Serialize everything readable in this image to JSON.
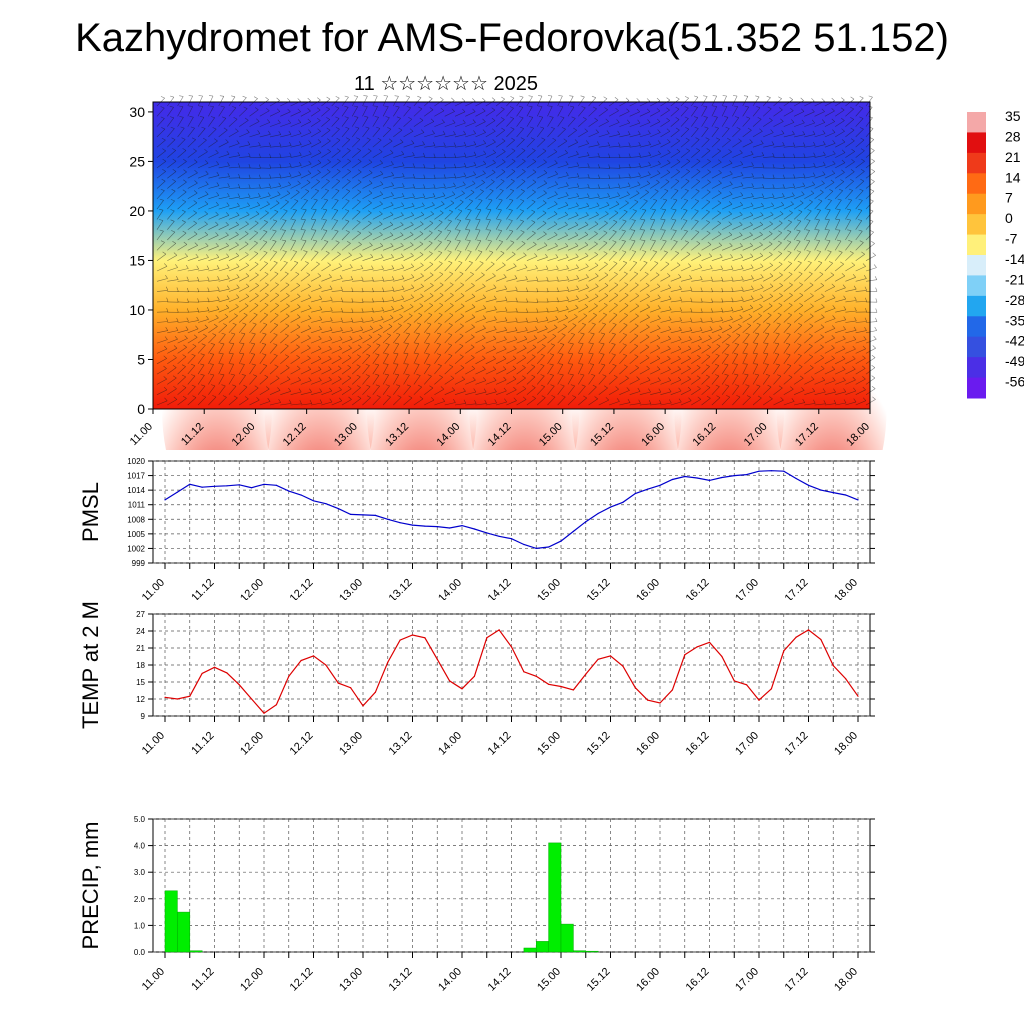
{
  "title": "Kazhydromet for AMS-Fedorovka(51.352 51.152)",
  "subtitle": "11 ☆☆☆☆☆☆ 2025",
  "colorbar": {
    "labels": [
      "35",
      "28",
      "21",
      "14",
      "7",
      "0",
      "-7",
      "-14",
      "-21",
      "-28",
      "-35",
      "-42",
      "-49",
      "-56"
    ],
    "colors": [
      "#ff0000",
      "#ff6a00",
      "#ffa200",
      "#ffd85a",
      "#9fdcff",
      "#1e90ff",
      "#2a4fe0",
      "#5a1ee6"
    ]
  },
  "chart_data": [
    {
      "type": "heatmap",
      "title": "",
      "x_tick_labels": [
        "11.00",
        "11.12",
        "12.00",
        "12.12",
        "13.00",
        "13.12",
        "14.00",
        "14.12",
        "15.00",
        "15.12",
        "16.00",
        "16.12",
        "17.00",
        "17.12",
        "18.00"
      ],
      "y_tick_labels": [
        "0",
        "5",
        "10",
        "15",
        "20",
        "25",
        "30"
      ],
      "ylim": [
        0,
        31
      ],
      "value_range": [
        -56,
        35
      ],
      "levels": [
        0,
        5,
        10,
        15,
        20,
        25,
        30
      ],
      "level_temperatures": [
        24,
        17,
        7,
        -12,
        -30,
        -47,
        -54
      ],
      "overlay": "wind barbs"
    },
    {
      "type": "line",
      "ylabel": "PMSL",
      "x_tick_labels": [
        "11.00",
        "11.12",
        "12.00",
        "12.12",
        "13.00",
        "13.12",
        "14.00",
        "14.12",
        "15.00",
        "15.12",
        "16.00",
        "16.12",
        "17.00",
        "17.12",
        "18.00"
      ],
      "y_tick_labels": [
        "999",
        "1002",
        "1005",
        "1008",
        "1011",
        "1014",
        "1017",
        "1020"
      ],
      "ylim": [
        999,
        1020
      ],
      "color": "#0000cc",
      "values": [
        1012.0,
        1013.6,
        1015.2,
        1014.6,
        1014.8,
        1014.9,
        1015.1,
        1014.5,
        1015.2,
        1015.0,
        1013.8,
        1013.0,
        1011.8,
        1011.2,
        1010.2,
        1009.0,
        1008.9,
        1008.8,
        1008.0,
        1007.3,
        1006.8,
        1006.6,
        1006.5,
        1006.2,
        1006.7,
        1006.0,
        1005.2,
        1004.5,
        1004.0,
        1002.8,
        1002.0,
        1002.3,
        1003.5,
        1005.5,
        1007.5,
        1009.2,
        1010.5,
        1011.5,
        1013.3,
        1014.2,
        1015.0,
        1016.2,
        1016.8,
        1016.5,
        1016.0,
        1016.6,
        1017.0,
        1017.2,
        1017.9,
        1018.0,
        1017.9,
        1016.4,
        1015.0,
        1014.0,
        1013.5,
        1013.0,
        1012.0
      ]
    },
    {
      "type": "line",
      "ylabel": "TEMP at 2 M",
      "x_tick_labels": [
        "11.00",
        "11.12",
        "12.00",
        "12.12",
        "13.00",
        "13.12",
        "14.00",
        "14.12",
        "15.00",
        "15.12",
        "16.00",
        "16.12",
        "17.00",
        "17.12",
        "18.00"
      ],
      "y_tick_labels": [
        "9",
        "12",
        "15",
        "18",
        "21",
        "24",
        "27"
      ],
      "ylim": [
        9,
        27
      ],
      "color": "#dd0000",
      "values": [
        12.3,
        12.0,
        12.5,
        16.5,
        17.6,
        16.6,
        14.5,
        12.0,
        9.5,
        11.0,
        16.0,
        18.8,
        19.6,
        18.0,
        14.8,
        14.0,
        10.8,
        13.2,
        18.5,
        22.4,
        23.3,
        22.8,
        19.0,
        15.2,
        13.8,
        16.0,
        22.8,
        24.2,
        21.2,
        16.8,
        16.0,
        14.6,
        14.2,
        13.6,
        16.4,
        19.0,
        19.6,
        17.8,
        14.0,
        11.8,
        11.3,
        13.6,
        19.8,
        21.2,
        22.0,
        19.5,
        15.2,
        14.5,
        11.8,
        13.8,
        20.5,
        22.9,
        24.2,
        22.5,
        17.9,
        15.6,
        12.5
      ]
    },
    {
      "type": "bar",
      "ylabel": "PRECIP, mm",
      "x_tick_labels": [
        "11.00",
        "11.12",
        "12.00",
        "12.12",
        "13.00",
        "13.12",
        "14.00",
        "14.12",
        "15.00",
        "15.12",
        "16.00",
        "16.12",
        "17.00",
        "17.12",
        "18.00"
      ],
      "y_tick_labels": [
        "0.0",
        "1.0",
        "2.0",
        "3.0",
        "4.0",
        "5.0"
      ],
      "ylim": [
        0,
        5
      ],
      "color": "#00ee00",
      "values": [
        2.3,
        1.5,
        0.05,
        0,
        0,
        0,
        0,
        0,
        0,
        0,
        0,
        0,
        0,
        0,
        0,
        0,
        0,
        0,
        0,
        0,
        0,
        0,
        0,
        0,
        0,
        0,
        0,
        0,
        0,
        0.15,
        0.4,
        4.1,
        1.05,
        0.05,
        0.03,
        0,
        0,
        0,
        0,
        0,
        0,
        0,
        0,
        0,
        0,
        0,
        0,
        0,
        0,
        0,
        0,
        0,
        0,
        0,
        0,
        0
      ]
    }
  ]
}
